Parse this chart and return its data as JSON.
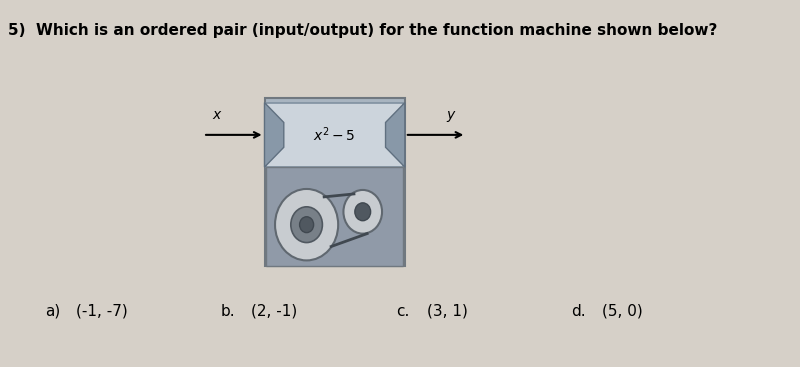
{
  "title": "5)  Which is an ordered pair (input/output) for the function machine shown below?",
  "title_fontsize": 11,
  "function_label": "$x^2 - 5$",
  "input_label": "x",
  "output_label": "y",
  "options": [
    {
      "letter": "a)",
      "text": "(-1, -7)"
    },
    {
      "letter": "b.",
      "text": "(2, -1)"
    },
    {
      "letter": "c.",
      "text": "(3, 1)"
    },
    {
      "letter": "d.",
      "text": "(5, 0)"
    }
  ],
  "bg_color": "#d6d0c8",
  "gear_outer_color": "#c8ccd0",
  "gear_edge_color": "#606870",
  "gear_inner_color": "#788088",
  "gear_center_color": "#505860",
  "machine_body_color": "#a8b4c0",
  "machine_top_color": "#ccd4dc",
  "machine_notch_color": "#8898a8",
  "machine_bottom_color": "#909aa8"
}
